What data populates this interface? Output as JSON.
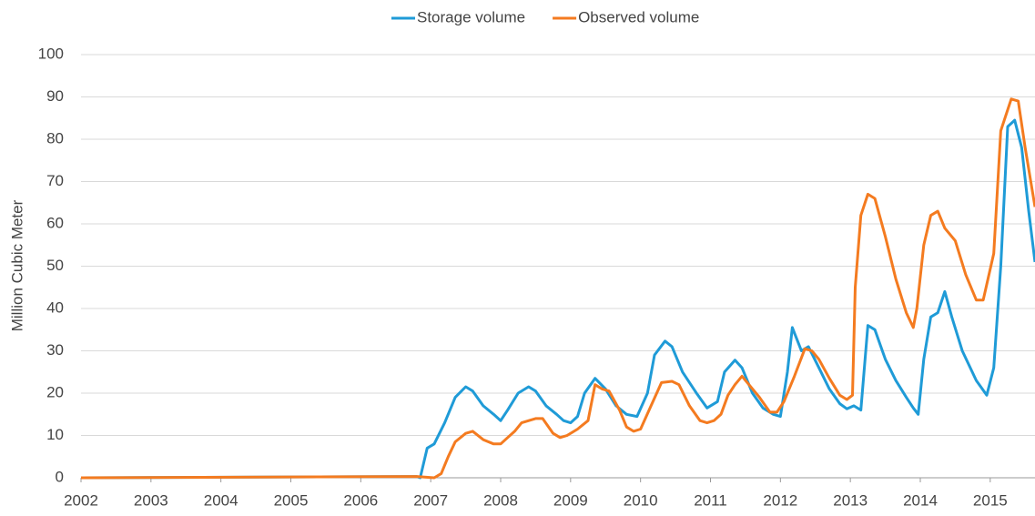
{
  "chart_data": {
    "type": "line",
    "ylabel": "Million Cubic Meter",
    "xlim": [
      2002,
      2015.64
    ],
    "ylim": [
      0,
      100
    ],
    "xticks": [
      2002,
      2003,
      2004,
      2005,
      2006,
      2007,
      2008,
      2009,
      2010,
      2011,
      2012,
      2013,
      2014,
      2015
    ],
    "yticks": [
      0,
      10,
      20,
      30,
      40,
      50,
      60,
      70,
      80,
      90,
      100
    ],
    "grid": true,
    "legend": "top",
    "series": [
      {
        "name": "Storage volume",
        "color": "#1f9bd7",
        "x": [
          2002,
          2006.8,
          2006.85,
          2006.95,
          2007.05,
          2007.2,
          2007.35,
          2007.5,
          2007.6,
          2007.75,
          2007.9,
          2008.0,
          2008.1,
          2008.25,
          2008.4,
          2008.5,
          2008.65,
          2008.8,
          2008.9,
          2009.0,
          2009.1,
          2009.2,
          2009.35,
          2009.5,
          2009.65,
          2009.8,
          2009.95,
          2010.1,
          2010.2,
          2010.35,
          2010.45,
          2010.6,
          2010.8,
          2010.95,
          2011.1,
          2011.2,
          2011.35,
          2011.45,
          2011.6,
          2011.75,
          2011.9,
          2012.0,
          2012.1,
          2012.17,
          2012.3,
          2012.4,
          2012.55,
          2012.7,
          2012.85,
          2012.95,
          2013.05,
          2013.15,
          2013.25,
          2013.35,
          2013.5,
          2013.65,
          2013.8,
          2013.9,
          2013.97,
          2014.05,
          2014.15,
          2014.25,
          2014.35,
          2014.45,
          2014.6,
          2014.8,
          2014.95,
          2015.05,
          2015.15,
          2015.25,
          2015.35,
          2015.45,
          2015.55,
          2015.64
        ],
        "values": [
          0,
          0.3,
          0,
          7,
          8,
          13,
          19,
          21.5,
          20.5,
          17,
          15,
          13.5,
          16,
          20,
          21.5,
          20.5,
          17,
          15,
          13.5,
          13,
          14.5,
          20,
          23.5,
          21,
          17,
          15,
          14.5,
          20,
          29,
          32.3,
          31,
          25,
          20,
          16.5,
          18,
          25,
          27.8,
          26,
          20,
          16.5,
          15,
          14.5,
          25,
          35.5,
          30,
          31,
          26,
          21,
          17.5,
          16.3,
          17,
          16,
          36,
          35,
          28,
          23,
          19,
          16.5,
          15,
          28,
          38,
          39,
          44,
          38,
          30,
          23,
          19.5,
          26,
          50,
          83,
          84.5,
          78,
          63,
          51
        ]
      },
      {
        "name": "Observed volume",
        "color": "#f47b20",
        "x": [
          2002,
          2006.8,
          2007.05,
          2007.15,
          2007.25,
          2007.35,
          2007.5,
          2007.6,
          2007.75,
          2007.9,
          2008.0,
          2008.1,
          2008.2,
          2008.3,
          2008.5,
          2008.6,
          2008.75,
          2008.85,
          2008.95,
          2009.1,
          2009.25,
          2009.35,
          2009.45,
          2009.55,
          2009.7,
          2009.8,
          2009.9,
          2010.0,
          2010.15,
          2010.3,
          2010.45,
          2010.55,
          2010.7,
          2010.85,
          2010.95,
          2011.05,
          2011.15,
          2011.25,
          2011.35,
          2011.45,
          2011.55,
          2011.7,
          2011.85,
          2011.95,
          2012.05,
          2012.2,
          2012.35,
          2012.45,
          2012.55,
          2012.7,
          2012.85,
          2012.95,
          2013.03,
          2013.07,
          2013.15,
          2013.25,
          2013.35,
          2013.5,
          2013.65,
          2013.8,
          2013.9,
          2013.95,
          2014.05,
          2014.15,
          2014.25,
          2014.35,
          2014.5,
          2014.65,
          2014.8,
          2014.9,
          2015.05,
          2015.15,
          2015.3,
          2015.4,
          2015.5,
          2015.64
        ],
        "values": [
          0,
          0.3,
          0,
          1,
          5,
          8.5,
          10.5,
          11,
          9,
          8,
          8,
          9.5,
          11,
          13,
          14,
          14,
          10.5,
          9.5,
          10,
          11.5,
          13.5,
          22,
          21,
          20.5,
          16,
          12,
          11,
          11.5,
          17,
          22.5,
          22.8,
          22,
          17,
          13.5,
          13,
          13.5,
          15,
          19.5,
          22,
          24,
          22,
          19,
          15.5,
          15.5,
          18,
          24,
          30.5,
          30,
          28,
          23.5,
          19.5,
          18.5,
          19.5,
          45,
          62,
          67,
          66,
          57,
          47,
          39,
          35.5,
          40,
          55,
          62,
          63,
          59,
          56,
          48,
          42,
          42,
          53,
          82,
          89.5,
          89,
          78,
          64
        ]
      }
    ]
  }
}
